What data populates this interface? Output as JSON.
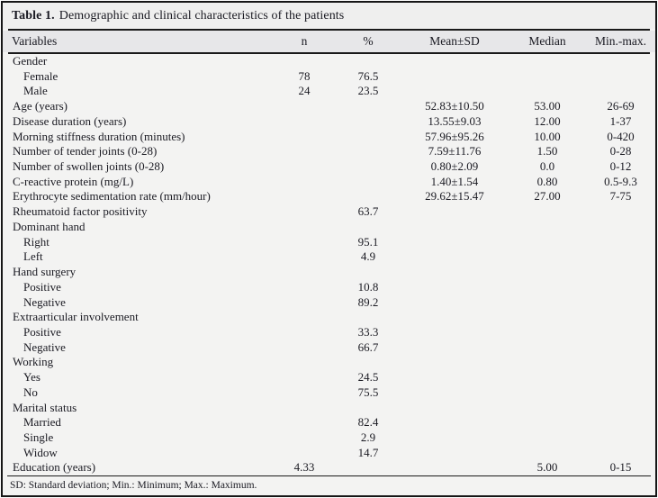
{
  "title": {
    "prefix": "Table 1.",
    "text": "Demographic and clinical characteristics of the patients"
  },
  "table": {
    "columns": [
      "Variables",
      "n",
      "%",
      "Mean±SD",
      "Median",
      "Min.-max."
    ],
    "rows": [
      {
        "label": "Gender",
        "indent": false,
        "n": "",
        "pct": "",
        "mean": "",
        "median": "",
        "range": ""
      },
      {
        "label": "Female",
        "indent": true,
        "n": "78",
        "pct": "76.5",
        "mean": "",
        "median": "",
        "range": ""
      },
      {
        "label": "Male",
        "indent": true,
        "n": "24",
        "pct": "23.5",
        "mean": "",
        "median": "",
        "range": ""
      },
      {
        "label": "Age (years)",
        "indent": false,
        "n": "",
        "pct": "",
        "mean": "52.83±10.50",
        "median": "53.00",
        "range": "26-69"
      },
      {
        "label": "Disease duration (years)",
        "indent": false,
        "n": "",
        "pct": "",
        "mean": "13.55±9.03",
        "median": "12.00",
        "range": "1-37"
      },
      {
        "label": "Morning stiffness duration (minutes)",
        "indent": false,
        "n": "",
        "pct": "",
        "mean": "57.96±95.26",
        "median": "10.00",
        "range": "0-420"
      },
      {
        "label": "Number of tender joints (0-28)",
        "indent": false,
        "n": "",
        "pct": "",
        "mean": "7.59±11.76",
        "median": "1.50",
        "range": "0-28"
      },
      {
        "label": "Number of swollen joints (0-28)",
        "indent": false,
        "n": "",
        "pct": "",
        "mean": "0.80±2.09",
        "median": "0.0",
        "range": "0-12"
      },
      {
        "label": "C-reactive protein (mg/L)",
        "indent": false,
        "n": "",
        "pct": "",
        "mean": "1.40±1.54",
        "median": "0.80",
        "range": "0.5-9.3"
      },
      {
        "label": "Erythrocyte sedimentation rate (mm/hour)",
        "indent": false,
        "n": "",
        "pct": "",
        "mean": "29.62±15.47",
        "median": "27.00",
        "range": "7-75"
      },
      {
        "label": "Rheumatoid factor positivity",
        "indent": false,
        "n": "",
        "pct": "63.7",
        "mean": "",
        "median": "",
        "range": ""
      },
      {
        "label": "Dominant hand",
        "indent": false,
        "n": "",
        "pct": "",
        "mean": "",
        "median": "",
        "range": ""
      },
      {
        "label": "Right",
        "indent": true,
        "n": "",
        "pct": "95.1",
        "mean": "",
        "median": "",
        "range": ""
      },
      {
        "label": "Left",
        "indent": true,
        "n": "",
        "pct": "4.9",
        "mean": "",
        "median": "",
        "range": ""
      },
      {
        "label": "Hand surgery",
        "indent": false,
        "n": "",
        "pct": "",
        "mean": "",
        "median": "",
        "range": ""
      },
      {
        "label": "Positive",
        "indent": true,
        "n": "",
        "pct": "10.8",
        "mean": "",
        "median": "",
        "range": ""
      },
      {
        "label": "Negative",
        "indent": true,
        "n": "",
        "pct": "89.2",
        "mean": "",
        "median": "",
        "range": ""
      },
      {
        "label": "Extraarticular involvement",
        "indent": false,
        "n": "",
        "pct": "",
        "mean": "",
        "median": "",
        "range": ""
      },
      {
        "label": "Positive",
        "indent": true,
        "n": "",
        "pct": "33.3",
        "mean": "",
        "median": "",
        "range": ""
      },
      {
        "label": "Negative",
        "indent": true,
        "n": "",
        "pct": "66.7",
        "mean": "",
        "median": "",
        "range": ""
      },
      {
        "label": "Working",
        "indent": false,
        "n": "",
        "pct": "",
        "mean": "",
        "median": "",
        "range": ""
      },
      {
        "label": "Yes",
        "indent": true,
        "n": "",
        "pct": "24.5",
        "mean": "",
        "median": "",
        "range": ""
      },
      {
        "label": "No",
        "indent": true,
        "n": "",
        "pct": "75.5",
        "mean": "",
        "median": "",
        "range": ""
      },
      {
        "label": "Marital status",
        "indent": false,
        "n": "",
        "pct": "",
        "mean": "",
        "median": "",
        "range": ""
      },
      {
        "label": "Married",
        "indent": true,
        "n": "",
        "pct": "82.4",
        "mean": "",
        "median": "",
        "range": ""
      },
      {
        "label": "Single",
        "indent": true,
        "n": "",
        "pct": "2.9",
        "mean": "",
        "median": "",
        "range": ""
      },
      {
        "label": "Widow",
        "indent": true,
        "n": "",
        "pct": "14.7",
        "mean": "",
        "median": "",
        "range": ""
      },
      {
        "label": "Education (years)",
        "indent": false,
        "n": "4.33",
        "pct": "",
        "mean": "",
        "median": "5.00",
        "range": "0-15"
      }
    ]
  },
  "footnote": "SD: Standard deviation; Min.: Minimum; Max.: Maximum.",
  "colors": {
    "frame_border": "#161616",
    "rule": "#1a1a1a",
    "title_bg": "#efefee",
    "header_bg": "#e7e7e9",
    "body_bg": "#f3f3f2",
    "text": "#1a1a22"
  }
}
